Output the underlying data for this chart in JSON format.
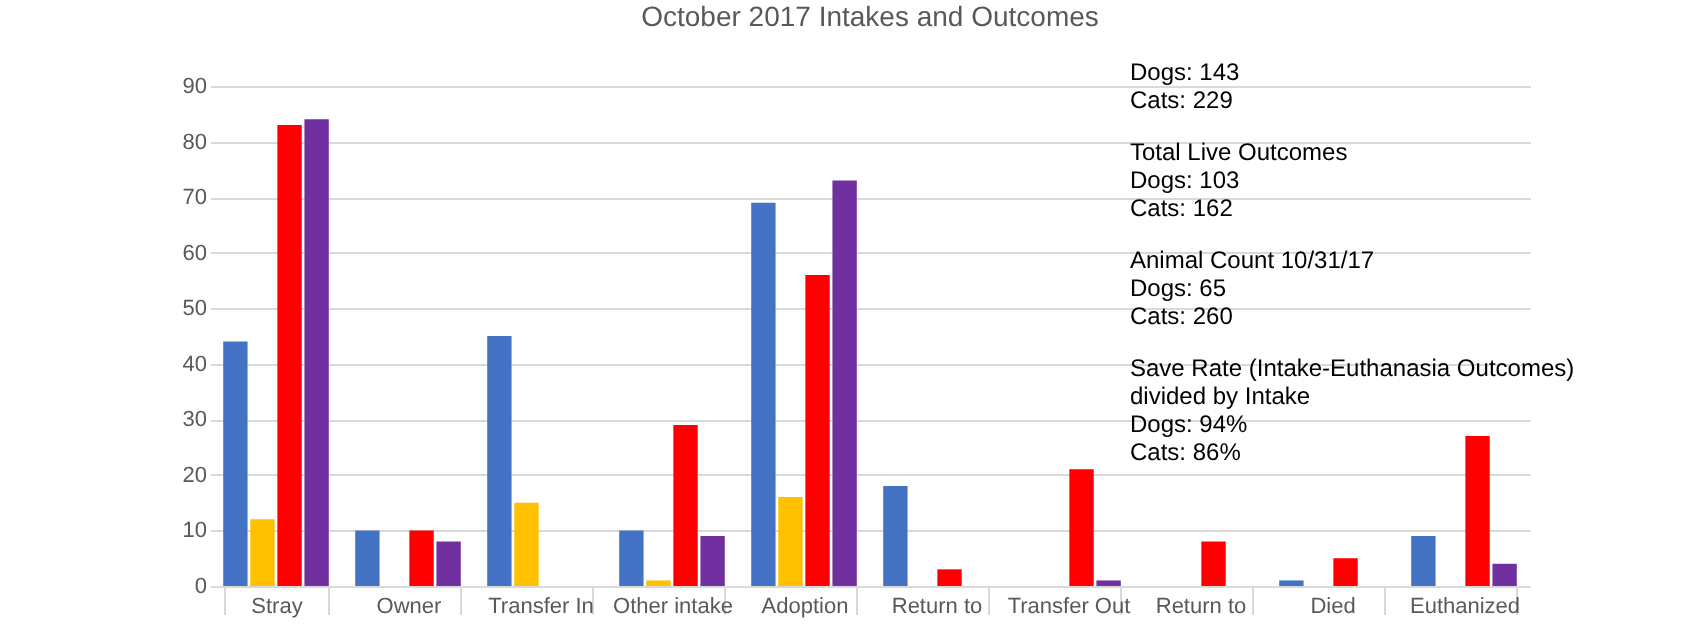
{
  "chart_data": {
    "type": "bar",
    "title": "October 2017 Intakes and Outcomes",
    "categories": [
      "Stray",
      "Owner",
      "Transfer In",
      "Other intake",
      "Adoption",
      "Return to",
      "Transfer Out",
      "Return to",
      "Died",
      "Euthanized"
    ],
    "series": [
      {
        "color": "#4472c4",
        "values": [
          44,
          10,
          45,
          10,
          69,
          18,
          null,
          null,
          1,
          9
        ]
      },
      {
        "color": "#ffc000",
        "values": [
          12,
          null,
          15,
          1,
          16,
          null,
          null,
          null,
          null,
          null
        ]
      },
      {
        "color": "#ff0000",
        "values": [
          83,
          10,
          null,
          29,
          56,
          3,
          21,
          8,
          5,
          27
        ]
      },
      {
        "color": "#7030a0",
        "values": [
          84,
          8,
          null,
          9,
          73,
          null,
          1,
          null,
          null,
          4
        ]
      }
    ],
    "ylim": [
      0,
      90
    ],
    "yticks": [
      0,
      10,
      20,
      30,
      40,
      50,
      60,
      70,
      80,
      90
    ],
    "grid": "y",
    "legend": false,
    "annotations": [
      "Dogs: 143\nCats: 229",
      "Total Live Outcomes\nDogs: 103\nCats: 162",
      "Animal Count 10/31/17\nDogs: 65\nCats: 260",
      "Save Rate (Intake-Euthanasia Outcomes)\ndivided by Intake\nDogs: 94%\nCats: 86%"
    ]
  }
}
